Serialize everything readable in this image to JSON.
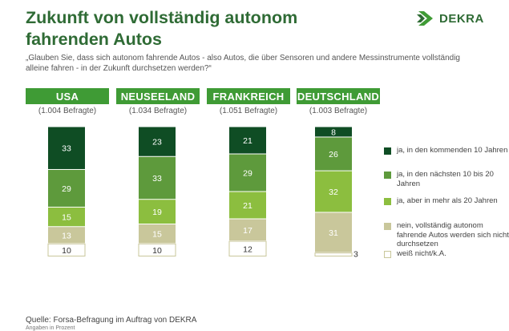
{
  "title": "Zukunft von vollständig autonom fahrenden Autos",
  "question": "„Glauben Sie, dass sich autonom fahrende Autos - also Autos, die über Sensoren und andere Messinstrumente vollständig alleine fahren - in der Zukunft durchsetzen werden?“",
  "logo": {
    "text": "DEKRA",
    "icon": "dekra-logo-icon"
  },
  "source": "Quelle: Forsa-Befragung im Auftrag von DEKRA",
  "note": "Angaben in Prozent",
  "colors": {
    "header": "#3f9b35",
    "cat1": "#0f4d24",
    "cat2": "#5e9a3c",
    "cat3": "#8cbe3f",
    "cat4": "#c9c79b",
    "cat5": "#ffffff"
  },
  "chart_data": {
    "type": "bar",
    "stacked": true,
    "categories": [
      "USA",
      "NEUSEELAND",
      "FRANKREICH",
      "DEUTSCHLAND"
    ],
    "subtitles": [
      "(1.004 Befragte)",
      "(1.034 Befragte)",
      "(1.051 Befragte)",
      "(1.003 Befragte)"
    ],
    "series": [
      {
        "name": "ja, in den kommenden 10 Jahren",
        "values": [
          33,
          23,
          21,
          8
        ]
      },
      {
        "name": "ja, in den nächsten 10 bis 20 Jahren",
        "values": [
          29,
          33,
          29,
          26
        ]
      },
      {
        "name": "ja, aber in mehr als 20 Jahren",
        "values": [
          15,
          19,
          21,
          32
        ]
      },
      {
        "name": "nein, vollständig autonom fahrende Autos werden sich nicht durchsetzen",
        "values": [
          13,
          15,
          17,
          31
        ]
      },
      {
        "name": "weiß nicht/k.A.",
        "values": [
          10,
          10,
          12,
          3
        ]
      }
    ],
    "unit": "%",
    "ylim": [
      0,
      100
    ],
    "legend": "right"
  }
}
